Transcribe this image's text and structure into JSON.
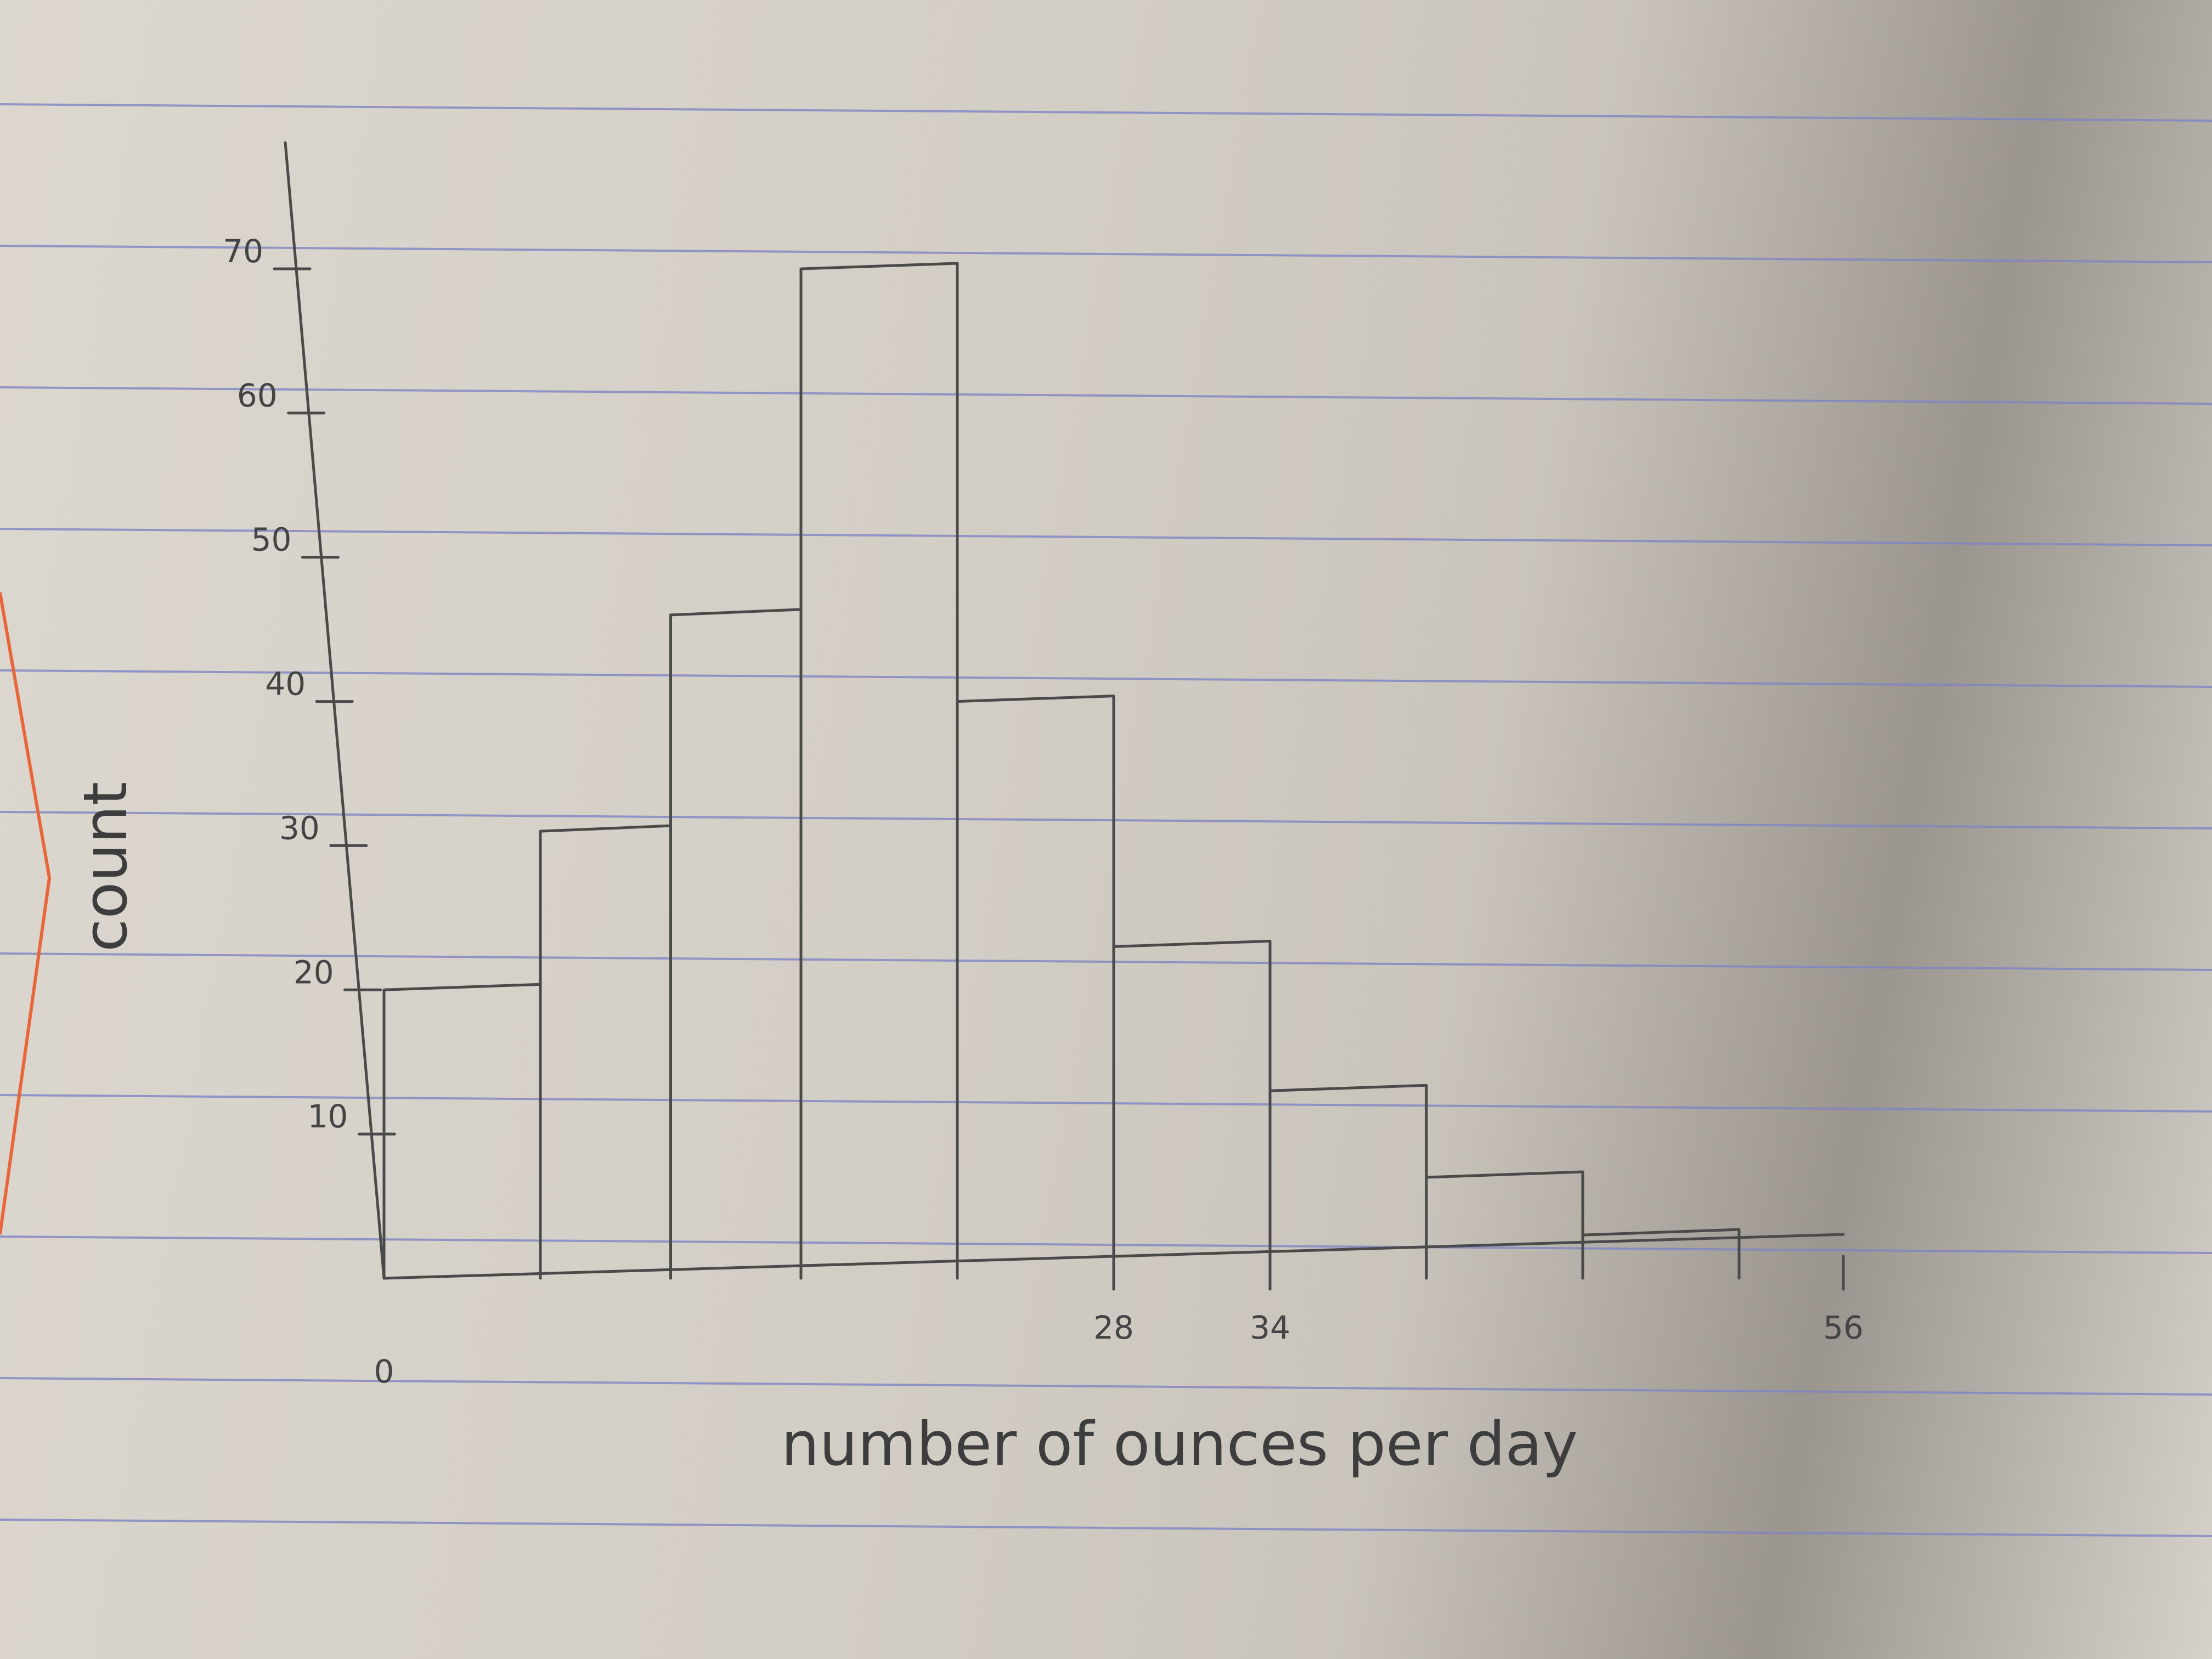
{
  "chart_data": {
    "type": "bar",
    "histogram": true,
    "xlabel": "number of ounces per day",
    "ylabel": "count",
    "x_ticks": [
      "0",
      "28",
      "34",
      "56"
    ],
    "y_ticks": [
      "10",
      "20",
      "30",
      "40",
      "50",
      "60",
      "70"
    ],
    "ylim": [
      0,
      70
    ],
    "xlim": [
      0,
      56
    ],
    "bins": [
      {
        "start": 0,
        "end": 6,
        "value": 20
      },
      {
        "start": 6,
        "end": 11,
        "value": 31
      },
      {
        "start": 11,
        "end": 16,
        "value": 46
      },
      {
        "start": 16,
        "end": 22,
        "value": 70
      },
      {
        "start": 22,
        "end": 28,
        "value": 40
      },
      {
        "start": 28,
        "end": 34,
        "value": 23
      },
      {
        "start": 34,
        "end": 40,
        "value": 13
      },
      {
        "start": 40,
        "end": 46,
        "value": 7
      },
      {
        "start": 46,
        "end": 52,
        "value": 3
      }
    ],
    "grid": false,
    "legend": "none"
  },
  "colors": {
    "paper": "#d9d4cc",
    "pencil": "#4a4a4a",
    "ruled_line": "#7f86c4",
    "margin_line": "#e8663a"
  }
}
